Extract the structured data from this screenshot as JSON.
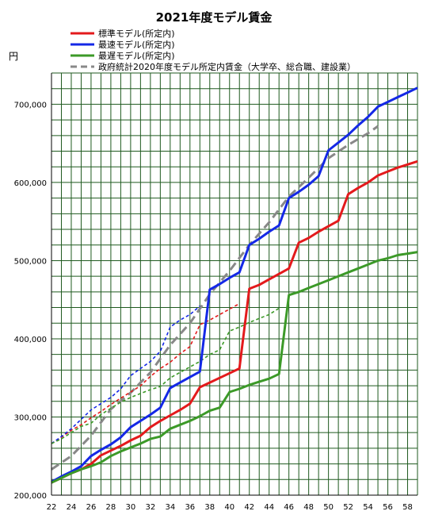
{
  "chart_data": {
    "type": "line",
    "title": "2021年度モデル賃金",
    "ylabel": "円",
    "xlabel": "",
    "xlim": [
      22,
      59
    ],
    "ylim": [
      200000,
      740000
    ],
    "grid": true,
    "legend_position": "top",
    "x_ticks": [
      22,
      24,
      26,
      28,
      30,
      32,
      34,
      36,
      38,
      40,
      42,
      44,
      46,
      48,
      50,
      52,
      54,
      56,
      58
    ],
    "y_ticks": [
      200000,
      300000,
      400000,
      500000,
      600000,
      700000
    ],
    "y_tick_labels": [
      "200,000",
      "300,000",
      "400,000",
      "500,000",
      "600,000",
      "700,000"
    ],
    "series": [
      {
        "name": "標準モデル(所定内)",
        "color": "#e31a1c",
        "style": "solid",
        "points": [
          [
            22,
            216000
          ],
          [
            23,
            222000
          ],
          [
            24,
            228000
          ],
          [
            25,
            233000
          ],
          [
            26,
            240000
          ],
          [
            27,
            251000
          ],
          [
            28,
            257000
          ],
          [
            29,
            263000
          ],
          [
            30,
            270000
          ],
          [
            31,
            276000
          ],
          [
            32,
            287000
          ],
          [
            33,
            295000
          ],
          [
            34,
            302000
          ],
          [
            35,
            309000
          ],
          [
            36,
            317000
          ],
          [
            37,
            338000
          ],
          [
            38,
            344000
          ],
          [
            39,
            350000
          ],
          [
            40,
            356000
          ],
          [
            41,
            362000
          ],
          [
            42,
            464000
          ],
          [
            43,
            469000
          ],
          [
            44,
            476000
          ],
          [
            45,
            483000
          ],
          [
            46,
            490000
          ],
          [
            47,
            523000
          ],
          [
            48,
            529000
          ],
          [
            49,
            537000
          ],
          [
            50,
            544000
          ],
          [
            51,
            551000
          ],
          [
            52,
            585000
          ],
          [
            53,
            593000
          ],
          [
            54,
            600000
          ],
          [
            55,
            609000
          ],
          [
            56,
            614000
          ],
          [
            57,
            619000
          ],
          [
            58,
            623000
          ],
          [
            59,
            627000
          ]
        ]
      },
      {
        "name": "最速モデル(所定内)",
        "color": "#1428e6",
        "style": "solid",
        "points": [
          [
            22,
            217000
          ],
          [
            23,
            224000
          ],
          [
            24,
            230000
          ],
          [
            25,
            237000
          ],
          [
            26,
            250000
          ],
          [
            27,
            258000
          ],
          [
            28,
            265000
          ],
          [
            29,
            274000
          ],
          [
            30,
            287000
          ],
          [
            31,
            295000
          ],
          [
            32,
            303000
          ],
          [
            33,
            312000
          ],
          [
            34,
            337000
          ],
          [
            35,
            344000
          ],
          [
            36,
            351000
          ],
          [
            37,
            358000
          ],
          [
            38,
            463000
          ],
          [
            39,
            470000
          ],
          [
            40,
            478000
          ],
          [
            41,
            485000
          ],
          [
            42,
            520000
          ],
          [
            43,
            528000
          ],
          [
            44,
            537000
          ],
          [
            45,
            545000
          ],
          [
            46,
            580000
          ],
          [
            47,
            588000
          ],
          [
            48,
            597000
          ],
          [
            49,
            608000
          ],
          [
            50,
            641000
          ],
          [
            51,
            651000
          ],
          [
            52,
            661000
          ],
          [
            53,
            673000
          ],
          [
            54,
            684000
          ],
          [
            55,
            697000
          ],
          [
            56,
            703000
          ],
          [
            57,
            709000
          ],
          [
            58,
            715000
          ],
          [
            59,
            721000
          ]
        ]
      },
      {
        "name": "最遅モデル(所定内)",
        "color": "#3c9a28",
        "style": "solid",
        "points": [
          [
            22,
            216000
          ],
          [
            23,
            222000
          ],
          [
            24,
            228000
          ],
          [
            25,
            233000
          ],
          [
            26,
            237000
          ],
          [
            27,
            242000
          ],
          [
            28,
            250000
          ],
          [
            29,
            256000
          ],
          [
            30,
            261000
          ],
          [
            31,
            266000
          ],
          [
            32,
            272000
          ],
          [
            33,
            275000
          ],
          [
            34,
            285000
          ],
          [
            35,
            290000
          ],
          [
            36,
            295000
          ],
          [
            37,
            301000
          ],
          [
            38,
            308000
          ],
          [
            39,
            312000
          ],
          [
            40,
            332000
          ],
          [
            41,
            336000
          ],
          [
            42,
            341000
          ],
          [
            43,
            345000
          ],
          [
            44,
            349000
          ],
          [
            45,
            355000
          ],
          [
            46,
            456000
          ],
          [
            47,
            460000
          ],
          [
            48,
            465000
          ],
          [
            49,
            470000
          ],
          [
            50,
            475000
          ],
          [
            51,
            480000
          ],
          [
            52,
            485000
          ],
          [
            53,
            490000
          ],
          [
            54,
            495000
          ],
          [
            55,
            500000
          ],
          [
            56,
            503000
          ],
          [
            57,
            507000
          ],
          [
            58,
            509000
          ],
          [
            59,
            511000
          ]
        ]
      },
      {
        "name": "",
        "color": "#e31a1c",
        "style": "dotted",
        "points": [
          [
            22,
            266000
          ],
          [
            23,
            274000
          ],
          [
            24,
            283000
          ],
          [
            25,
            290000
          ],
          [
            26,
            299000
          ],
          [
            27,
            307000
          ],
          [
            28,
            316000
          ],
          [
            29,
            324000
          ],
          [
            30,
            332000
          ],
          [
            31,
            340000
          ],
          [
            32,
            352000
          ],
          [
            33,
            362000
          ],
          [
            34,
            370000
          ],
          [
            35,
            381000
          ],
          [
            36,
            390000
          ],
          [
            37,
            418000
          ],
          [
            38,
            424000
          ],
          [
            39,
            431000
          ],
          [
            40,
            438000
          ],
          [
            41,
            445000
          ]
        ]
      },
      {
        "name": "",
        "color": "#1428e6",
        "style": "dotted",
        "points": [
          [
            22,
            266000
          ],
          [
            23,
            275000
          ],
          [
            24,
            285000
          ],
          [
            25,
            297000
          ],
          [
            26,
            309000
          ],
          [
            27,
            317000
          ],
          [
            28,
            325000
          ],
          [
            29,
            336000
          ],
          [
            30,
            353000
          ],
          [
            31,
            362000
          ],
          [
            32,
            371000
          ],
          [
            33,
            384000
          ],
          [
            34,
            415000
          ],
          [
            35,
            424000
          ],
          [
            36,
            431000
          ],
          [
            37,
            442000
          ]
        ]
      },
      {
        "name": "",
        "color": "#3c9a28",
        "style": "dotted",
        "points": [
          [
            22,
            266000
          ],
          [
            23,
            272000
          ],
          [
            24,
            280000
          ],
          [
            25,
            288000
          ],
          [
            26,
            292000
          ],
          [
            27,
            303000
          ],
          [
            28,
            311000
          ],
          [
            29,
            319000
          ],
          [
            30,
            325000
          ],
          [
            31,
            330000
          ],
          [
            32,
            335000
          ],
          [
            33,
            339000
          ],
          [
            34,
            350000
          ],
          [
            35,
            357000
          ],
          [
            36,
            364000
          ],
          [
            37,
            371000
          ],
          [
            38,
            380000
          ],
          [
            39,
            386000
          ],
          [
            40,
            410000
          ],
          [
            41,
            415000
          ],
          [
            42,
            421000
          ],
          [
            43,
            426000
          ],
          [
            44,
            431000
          ],
          [
            45,
            439000
          ]
        ]
      },
      {
        "name": "政府統計2020年度モデル所定内賃金（大学卒、総合職、建設業）",
        "color": "#888888",
        "style": "dashed",
        "points": [
          [
            22,
            233000
          ],
          [
            24,
            250000
          ],
          [
            26,
            276000
          ],
          [
            28,
            310000
          ],
          [
            30,
            331000
          ],
          [
            32,
            357000
          ],
          [
            34,
            392000
          ],
          [
            36,
            420000
          ],
          [
            38,
            457000
          ],
          [
            40,
            487000
          ],
          [
            42,
            520000
          ],
          [
            44,
            549000
          ],
          [
            46,
            582000
          ],
          [
            48,
            606000
          ],
          [
            50,
            631000
          ],
          [
            52,
            648000
          ],
          [
            54,
            663000
          ],
          [
            55,
            672000
          ]
        ]
      }
    ]
  }
}
